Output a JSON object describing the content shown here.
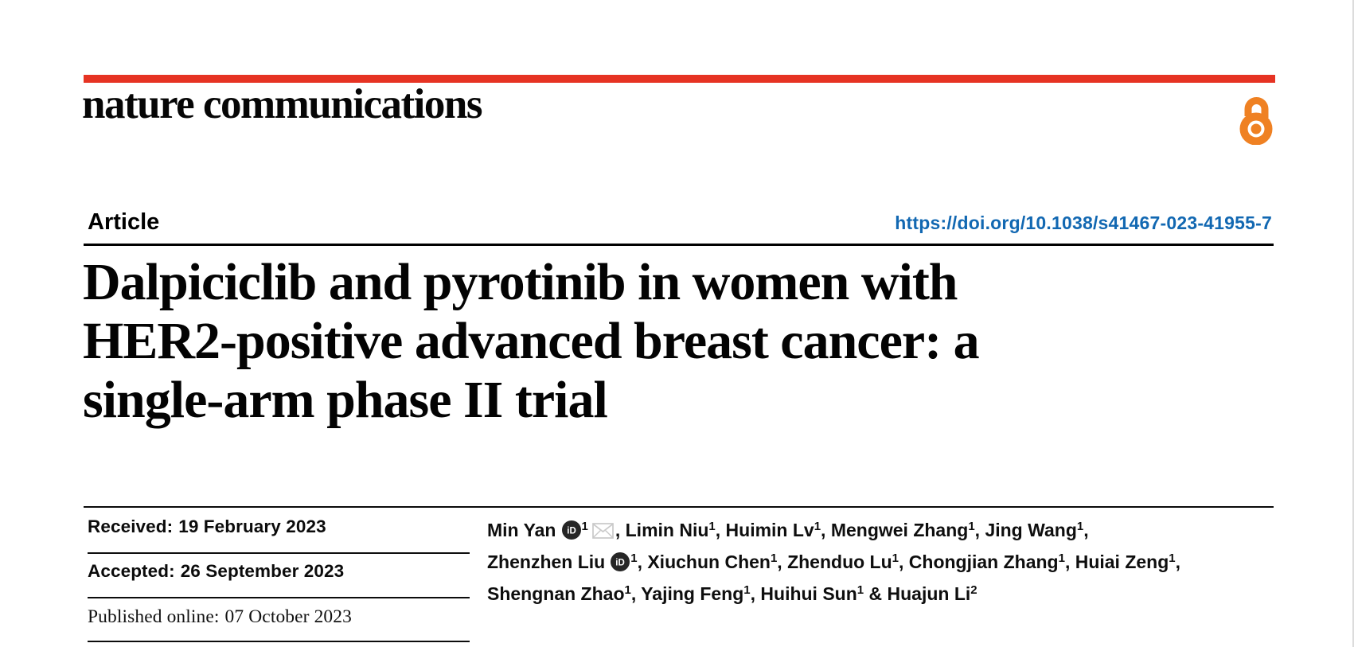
{
  "brand": {
    "logo_text": "nature communications",
    "red_bar_color": "#e63323",
    "open_access_color": "#ef8123",
    "icons": {
      "open_access": "open-padlock",
      "orcid": "orcid-id-badge",
      "email": "envelope"
    }
  },
  "header": {
    "article_label": "Article",
    "doi_link": "https://doi.org/10.1038/s41467-023-41955-7",
    "doi_color": "#1268b2"
  },
  "title": {
    "lines": [
      "Dalpiciclib and pyrotinib in women with",
      "HER2-positive advanced breast cancer: a",
      "single-arm phase II trial"
    ]
  },
  "dates": {
    "items": [
      {
        "label": "Received:",
        "value": "19 February 2023"
      },
      {
        "label": "Accepted:",
        "value": "26 September 2023"
      },
      {
        "label": "Published online:",
        "value": "07 October 2023"
      }
    ]
  },
  "authors": {
    "lines": [
      {
        "segments": [
          {
            "t": "text",
            "v": "Min Yan"
          },
          {
            "t": "orcid"
          },
          {
            "t": "sup",
            "v": "1"
          },
          {
            "t": "mail"
          },
          {
            "t": "text",
            "v": ", Limin Niu"
          },
          {
            "t": "sup",
            "v": "1"
          },
          {
            "t": "text",
            "v": ", Huimin Lv"
          },
          {
            "t": "sup",
            "v": "1"
          },
          {
            "t": "text",
            "v": ", Mengwei Zhang"
          },
          {
            "t": "sup",
            "v": "1"
          },
          {
            "t": "text",
            "v": ", Jing Wang"
          },
          {
            "t": "sup",
            "v": "1"
          },
          {
            "t": "text",
            "v": ","
          }
        ]
      },
      {
        "segments": [
          {
            "t": "text",
            "v": "Zhenzhen Liu"
          },
          {
            "t": "orcid"
          },
          {
            "t": "sup",
            "v": "1"
          },
          {
            "t": "text",
            "v": ", Xiuchun Chen"
          },
          {
            "t": "sup",
            "v": "1"
          },
          {
            "t": "text",
            "v": ", Zhenduo Lu"
          },
          {
            "t": "sup",
            "v": "1"
          },
          {
            "t": "text",
            "v": ", Chongjian Zhang"
          },
          {
            "t": "sup",
            "v": "1"
          },
          {
            "t": "text",
            "v": ", Huiai Zeng"
          },
          {
            "t": "sup",
            "v": "1"
          },
          {
            "t": "text",
            "v": ","
          }
        ]
      },
      {
        "segments": [
          {
            "t": "text",
            "v": "Shengnan Zhao"
          },
          {
            "t": "sup",
            "v": "1"
          },
          {
            "t": "text",
            "v": ", Yajing Feng"
          },
          {
            "t": "sup",
            "v": "1"
          },
          {
            "t": "text",
            "v": ", Huihui Sun"
          },
          {
            "t": "sup",
            "v": "1"
          },
          {
            "t": "text",
            "v": " & Huajun Li"
          },
          {
            "t": "sup",
            "v": "2"
          }
        ]
      }
    ]
  }
}
